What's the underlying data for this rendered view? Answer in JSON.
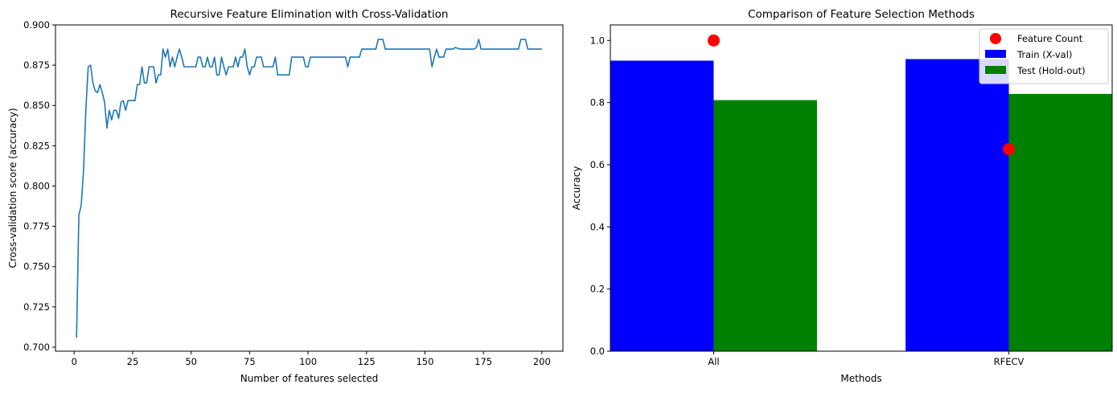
{
  "chart_data": [
    {
      "type": "line",
      "title": "Recursive Feature Elimination with Cross-Validation",
      "xlabel": "Number of features selected",
      "ylabel": "Cross-validation score (accuracy)",
      "xlim": [
        -8,
        209
      ],
      "ylim": [
        0.6975,
        0.9
      ],
      "xticks": [
        0,
        25,
        50,
        75,
        100,
        125,
        150,
        175,
        200
      ],
      "yticks": [
        0.7,
        0.725,
        0.75,
        0.775,
        0.8,
        0.825,
        0.85,
        0.875,
        0.9
      ],
      "grid": false,
      "series": [
        {
          "color": "#1f77b4",
          "points": [
            [
              1,
              0.706
            ],
            [
              2,
              0.782
            ],
            [
              3,
              0.788
            ],
            [
              4,
              0.81
            ],
            [
              5,
              0.848
            ],
            [
              6,
              0.874
            ],
            [
              7,
              0.875
            ],
            [
              8,
              0.864
            ],
            [
              9,
              0.859
            ],
            [
              10,
              0.858
            ],
            [
              11,
              0.863
            ],
            [
              12,
              0.858
            ],
            [
              13,
              0.852
            ],
            [
              14,
              0.836
            ],
            [
              15,
              0.847
            ],
            [
              16,
              0.841
            ],
            [
              17,
              0.847
            ],
            [
              18,
              0.847
            ],
            [
              19,
              0.842
            ],
            [
              20,
              0.852
            ],
            [
              21,
              0.853
            ],
            [
              22,
              0.847
            ],
            [
              23,
              0.853
            ],
            [
              24,
              0.853
            ],
            [
              25,
              0.853
            ],
            [
              26,
              0.853
            ],
            [
              27,
              0.863
            ],
            [
              28,
              0.863
            ],
            [
              29,
              0.874
            ],
            [
              30,
              0.864
            ],
            [
              31,
              0.864
            ],
            [
              32,
              0.874
            ],
            [
              33,
              0.874
            ],
            [
              34,
              0.874
            ],
            [
              35,
              0.864
            ],
            [
              36,
              0.869
            ],
            [
              37,
              0.869
            ],
            [
              38,
              0.885
            ],
            [
              39,
              0.88
            ],
            [
              40,
              0.885
            ],
            [
              41,
              0.874
            ],
            [
              42,
              0.88
            ],
            [
              43,
              0.874
            ],
            [
              44,
              0.88
            ],
            [
              45,
              0.885
            ],
            [
              46,
              0.88
            ],
            [
              47,
              0.874
            ],
            [
              48,
              0.874
            ],
            [
              49,
              0.874
            ],
            [
              50,
              0.874
            ],
            [
              51,
              0.874
            ],
            [
              52,
              0.874
            ],
            [
              53,
              0.88
            ],
            [
              54,
              0.88
            ],
            [
              55,
              0.874
            ],
            [
              56,
              0.874
            ],
            [
              57,
              0.88
            ],
            [
              58,
              0.874
            ],
            [
              59,
              0.874
            ],
            [
              60,
              0.88
            ],
            [
              61,
              0.869
            ],
            [
              62,
              0.869
            ],
            [
              63,
              0.88
            ],
            [
              64,
              0.874
            ],
            [
              65,
              0.869
            ],
            [
              66,
              0.874
            ],
            [
              67,
              0.874
            ],
            [
              68,
              0.874
            ],
            [
              69,
              0.88
            ],
            [
              70,
              0.874
            ],
            [
              71,
              0.88
            ],
            [
              72,
              0.88
            ],
            [
              73,
              0.885
            ],
            [
              74,
              0.874
            ],
            [
              75,
              0.869
            ],
            [
              76,
              0.874
            ],
            [
              77,
              0.874
            ],
            [
              78,
              0.88
            ],
            [
              79,
              0.88
            ],
            [
              80,
              0.88
            ],
            [
              81,
              0.874
            ],
            [
              82,
              0.874
            ],
            [
              83,
              0.874
            ],
            [
              84,
              0.874
            ],
            [
              85,
              0.874
            ],
            [
              86,
              0.88
            ],
            [
              87,
              0.869
            ],
            [
              88,
              0.869
            ],
            [
              89,
              0.869
            ],
            [
              90,
              0.869
            ],
            [
              91,
              0.869
            ],
            [
              92,
              0.869
            ],
            [
              93,
              0.88
            ],
            [
              94,
              0.88
            ],
            [
              95,
              0.88
            ],
            [
              96,
              0.88
            ],
            [
              97,
              0.88
            ],
            [
              98,
              0.88
            ],
            [
              99,
              0.874
            ],
            [
              100,
              0.874
            ],
            [
              101,
              0.88
            ],
            [
              102,
              0.88
            ],
            [
              103,
              0.88
            ],
            [
              105,
              0.88
            ],
            [
              108,
              0.88
            ],
            [
              110,
              0.88
            ],
            [
              113,
              0.88
            ],
            [
              116,
              0.88
            ],
            [
              117,
              0.874
            ],
            [
              118,
              0.88
            ],
            [
              119,
              0.88
            ],
            [
              120,
              0.88
            ],
            [
              121,
              0.88
            ],
            [
              122,
              0.88
            ],
            [
              123,
              0.885
            ],
            [
              125,
              0.885
            ],
            [
              127,
              0.885
            ],
            [
              129,
              0.885
            ],
            [
              130,
              0.891
            ],
            [
              132,
              0.891
            ],
            [
              133,
              0.885
            ],
            [
              136,
              0.885
            ],
            [
              140,
              0.885
            ],
            [
              145,
              0.885
            ],
            [
              150,
              0.885
            ],
            [
              152,
              0.885
            ],
            [
              153,
              0.874
            ],
            [
              154,
              0.88
            ],
            [
              155,
              0.885
            ],
            [
              156,
              0.88
            ],
            [
              157,
              0.88
            ],
            [
              158,
              0.88
            ],
            [
              159,
              0.885
            ],
            [
              160,
              0.885
            ],
            [
              161,
              0.885
            ],
            [
              162,
              0.885
            ],
            [
              163,
              0.886
            ],
            [
              165,
              0.885
            ],
            [
              168,
              0.885
            ],
            [
              171,
              0.885
            ],
            [
              172,
              0.886
            ],
            [
              173,
              0.891
            ],
            [
              174,
              0.885
            ],
            [
              176,
              0.885
            ],
            [
              180,
              0.885
            ],
            [
              185,
              0.885
            ],
            [
              190,
              0.885
            ],
            [
              191,
              0.891
            ],
            [
              193,
              0.891
            ],
            [
              194,
              0.885
            ],
            [
              196,
              0.885
            ],
            [
              198,
              0.885
            ],
            [
              200,
              0.885
            ]
          ]
        }
      ]
    },
    {
      "type": "bar",
      "title": "Comparison of Feature Selection Methods",
      "xlabel": "Methods",
      "ylabel": "Accuracy",
      "categories": [
        "All",
        "RFECV"
      ],
      "ylim": [
        0,
        1.05
      ],
      "yticks": [
        0.0,
        0.2,
        0.4,
        0.6,
        0.8,
        1.0
      ],
      "grid": false,
      "legend_placement": "top-right",
      "series": [
        {
          "name": "Train (X-val)",
          "values": [
            0.935,
            0.94
          ],
          "color": "#0000ff"
        },
        {
          "name": "Test (Hold-out)",
          "values": [
            0.808,
            0.828
          ],
          "color": "#008000"
        }
      ],
      "scatter": {
        "name": "Feature Count",
        "values": [
          1.0,
          0.65
        ],
        "color": "#ff0000"
      }
    }
  ]
}
